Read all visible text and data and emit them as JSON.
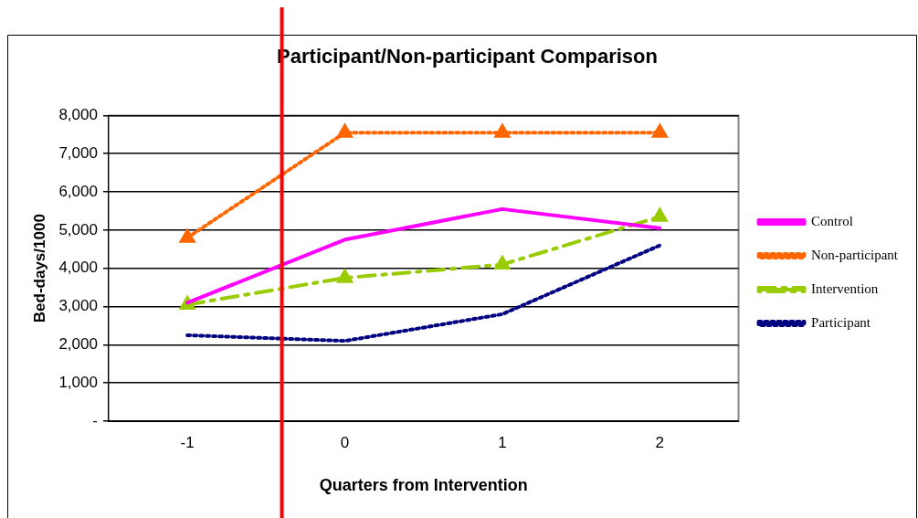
{
  "chart_data": {
    "type": "line",
    "title": "Participant/Non-participant Comparison",
    "xlabel": "Quarters from Intervention",
    "ylabel": "Bed-days/1000",
    "x": [
      -1,
      0,
      1,
      2
    ],
    "xlim": [
      -1.5,
      2.5
    ],
    "xticks": [
      -1,
      0,
      1,
      2
    ],
    "ylim": [
      0,
      8000
    ],
    "yticks": [
      {
        "value": 0,
        "label": "-"
      },
      {
        "value": 1000,
        "label": "1,000"
      },
      {
        "value": 2000,
        "label": "2,000"
      },
      {
        "value": 3000,
        "label": "3,000"
      },
      {
        "value": 4000,
        "label": "4,000"
      },
      {
        "value": 5000,
        "label": "5,000"
      },
      {
        "value": 6000,
        "label": "6,000"
      },
      {
        "value": 7000,
        "label": "7,000"
      },
      {
        "value": 8000,
        "label": "8,000"
      }
    ],
    "grid": "y",
    "legend": "right",
    "series": [
      {
        "name": "Control",
        "color": "#ff00ff",
        "values": [
          3100,
          4750,
          5550,
          5050
        ],
        "marker": "none",
        "line_style": "solid"
      },
      {
        "name": "Non-participant",
        "color": "#ff6600",
        "values": [
          4800,
          7550,
          7550,
          7550
        ],
        "marker": "triangle",
        "line_style": "dotted"
      },
      {
        "name": "Intervention",
        "color": "#99cc00",
        "values": [
          3050,
          3750,
          4100,
          5350
        ],
        "marker": "triangle",
        "line_style": "dashed"
      },
      {
        "name": "Participant",
        "color": "#000080",
        "values": [
          2250,
          2100,
          2800,
          4600
        ],
        "marker": "none",
        "line_style": "dotted"
      }
    ],
    "ref_lines": [
      {
        "axis": "x",
        "value": -0.4,
        "color": "#ff0000"
      }
    ]
  }
}
